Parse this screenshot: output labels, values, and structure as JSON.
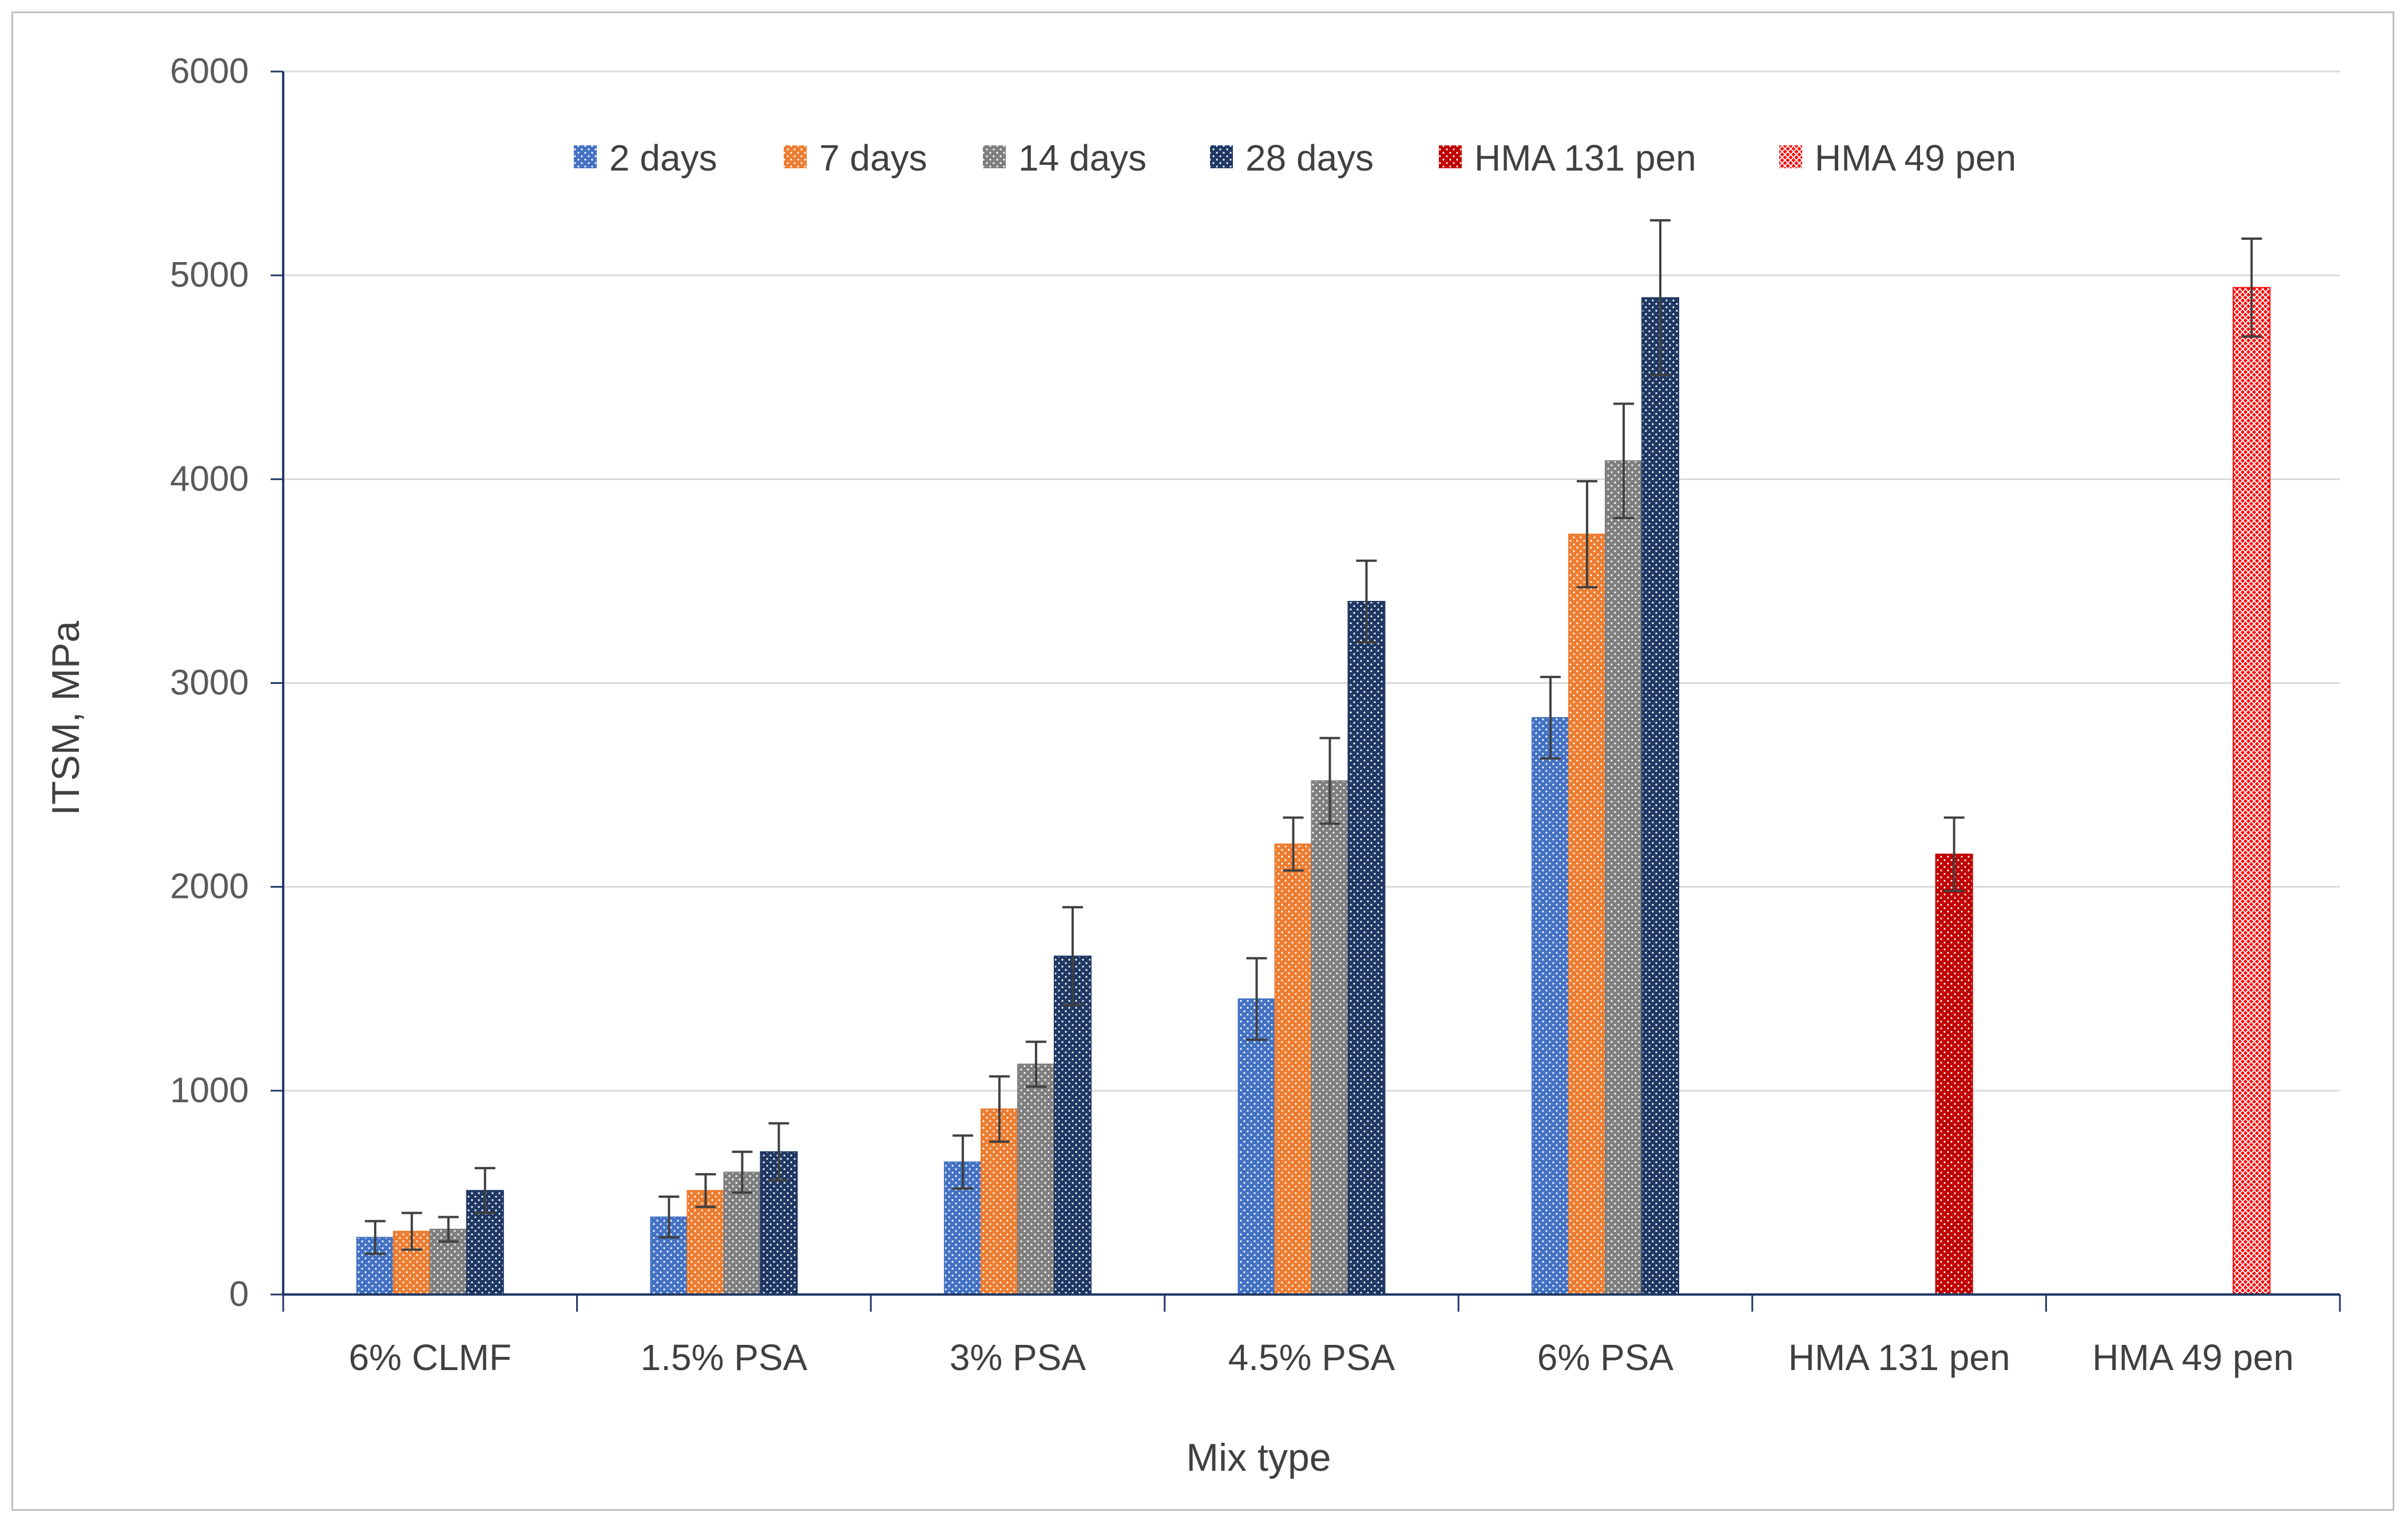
{
  "chart_data": {
    "type": "bar",
    "title": "",
    "xlabel": "Mix type",
    "ylabel": "ITSM, MPa",
    "ylim": [
      0,
      6000
    ],
    "yticks": [
      0,
      1000,
      2000,
      3000,
      4000,
      5000,
      6000
    ],
    "grid": true,
    "legend_position": "top",
    "categories": [
      "6% CLMF",
      "1.5% PSA",
      "3% PSA",
      "4.5% PSA",
      "6% PSA",
      "HMA 131 pen",
      "HMA 49 pen"
    ],
    "series": [
      {
        "name": "2 days",
        "color": "#4472c4",
        "pattern": "dots",
        "values": [
          280,
          380,
          650,
          1450,
          2830,
          null,
          null
        ],
        "errors": [
          80,
          100,
          130,
          200,
          200,
          null,
          null
        ]
      },
      {
        "name": "7 days",
        "color": "#ed7d31",
        "pattern": "dots",
        "values": [
          310,
          510,
          910,
          2210,
          3730,
          null,
          null
        ],
        "errors": [
          90,
          80,
          160,
          130,
          260,
          null,
          null
        ]
      },
      {
        "name": "14 days",
        "color": "#7f7f7f",
        "pattern": "dots",
        "values": [
          320,
          600,
          1130,
          2520,
          4090,
          null,
          null
        ],
        "errors": [
          60,
          100,
          110,
          210,
          280,
          null,
          null
        ]
      },
      {
        "name": "28 days",
        "color": "#1f3864",
        "pattern": "dots",
        "values": [
          510,
          700,
          1660,
          3400,
          4890,
          null,
          null
        ],
        "errors": [
          110,
          140,
          240,
          200,
          380,
          null,
          null
        ]
      },
      {
        "name": "HMA 131 pen",
        "color": "#c00000",
        "pattern": "dots",
        "values": [
          null,
          null,
          null,
          null,
          null,
          2160,
          null
        ],
        "errors": [
          null,
          null,
          null,
          null,
          null,
          180,
          null
        ]
      },
      {
        "name": "HMA 49 pen",
        "color": "#ff0000",
        "pattern": "cross",
        "values": [
          null,
          null,
          null,
          null,
          null,
          null,
          4940
        ],
        "errors": [
          null,
          null,
          null,
          null,
          null,
          null,
          240
        ]
      }
    ]
  }
}
